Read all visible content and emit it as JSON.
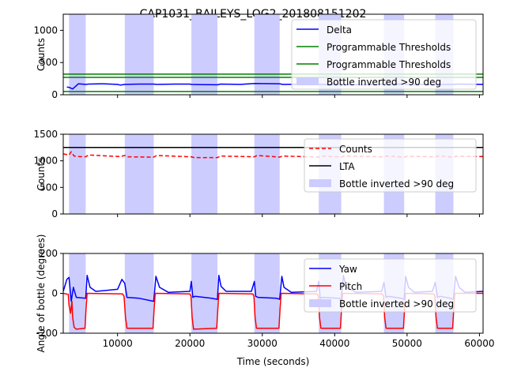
{
  "title": "CAP1031_BAILEYS_LOG2_201808151202",
  "colors": {
    "blue": "#0000ff",
    "green": "#008000",
    "red": "#ff0000",
    "black": "#000000",
    "span": "#ccccff"
  },
  "chart_data": [
    {
      "type": "line",
      "ylabel": "Counts",
      "xlim": [
        2500,
        60500
      ],
      "ylim": [
        0,
        1250
      ],
      "yticks": [
        0,
        500,
        1000
      ],
      "inverted_spans": [
        [
          3300,
          5600
        ],
        [
          11000,
          15000
        ],
        [
          20200,
          23800
        ],
        [
          28900,
          32400
        ],
        [
          37800,
          40900
        ],
        [
          46800,
          49600
        ],
        [
          53900,
          56400
        ]
      ],
      "legend": [
        "Delta",
        "Programmable Thresholds",
        "Programmable Thresholds",
        "Bottle inverted >90 deg"
      ],
      "legend_loc": "top-right",
      "series": [
        {
          "name": "Delta",
          "color": "blue",
          "x": [
            3000,
            3300,
            3800,
            4300,
            4600,
            5600,
            6000,
            8000,
            10000,
            10400,
            11000,
            13000,
            15000,
            15400,
            18000,
            20000,
            20200,
            23800,
            24200,
            27000,
            28900,
            32400,
            32800,
            36000,
            37800,
            40900,
            41300,
            44000,
            46800,
            49600,
            50000,
            53900,
            56400,
            56800,
            60500
          ],
          "y": [
            120,
            115,
            90,
            140,
            170,
            160,
            165,
            170,
            160,
            150,
            160,
            165,
            165,
            160,
            165,
            165,
            160,
            155,
            165,
            160,
            175,
            170,
            160,
            165,
            160,
            160,
            160,
            155,
            165,
            165,
            160,
            160,
            160,
            165,
            160
          ]
        },
        {
          "name": "Programmable Thresholds",
          "color": "green",
          "x": [
            2500,
            60500
          ],
          "y": [
            320,
            320
          ]
        },
        {
          "name": "Programmable Thresholds",
          "color": "green",
          "x": [
            2500,
            60500
          ],
          "y": [
            270,
            270
          ]
        },
        {
          "name": "",
          "color": "green",
          "x": [
            2500,
            60500
          ],
          "y": [
            50,
            50
          ]
        }
      ]
    },
    {
      "type": "line",
      "ylabel": "Counts",
      "xlim": [
        2500,
        60500
      ],
      "ylim": [
        0,
        1500
      ],
      "yticks": [
        0,
        500,
        1000,
        1500
      ],
      "inverted_spans": [
        [
          3300,
          5600
        ],
        [
          11000,
          15000
        ],
        [
          20200,
          23800
        ],
        [
          28900,
          32400
        ],
        [
          37800,
          40900
        ],
        [
          46800,
          49600
        ],
        [
          53900,
          56400
        ]
      ],
      "legend": [
        "Counts",
        "LTA",
        "Bottle inverted >90 deg"
      ],
      "legend_loc": "top-right",
      "series": [
        {
          "name": "Counts",
          "color": "red",
          "dashed": true,
          "x": [
            2500,
            3300,
            3600,
            4000,
            4600,
            5600,
            6000,
            10400,
            11000,
            11400,
            15000,
            15400,
            20200,
            20600,
            23800,
            24200,
            28900,
            29300,
            32400,
            32800,
            37800,
            38200,
            40900,
            41300,
            46800,
            47200,
            49600,
            50000,
            53900,
            54300,
            56400,
            56800,
            60500
          ],
          "y": [
            1130,
            1110,
            1170,
            1090,
            1080,
            1075,
            1110,
            1080,
            1100,
            1075,
            1070,
            1100,
            1075,
            1060,
            1060,
            1090,
            1075,
            1100,
            1070,
            1090,
            1070,
            1090,
            1070,
            1090,
            1075,
            1090,
            1070,
            1085,
            1075,
            1090,
            1070,
            1085,
            1080
          ]
        },
        {
          "name": "LTA",
          "color": "black",
          "x": [
            2500,
            60500
          ],
          "y": [
            1250,
            1250
          ]
        }
      ]
    },
    {
      "type": "line",
      "ylabel": "Angle of bottle (degrees)",
      "xlabel": "Time (seconds)",
      "xlim": [
        2500,
        60500
      ],
      "ylim": [
        -200,
        200
      ],
      "yticks": [
        -200,
        0,
        200
      ],
      "xticks": [
        10000,
        20000,
        30000,
        40000,
        50000,
        60000
      ],
      "inverted_spans": [
        [
          3300,
          5600
        ],
        [
          11000,
          15000
        ],
        [
          20200,
          23800
        ],
        [
          28900,
          32400
        ],
        [
          37800,
          40900
        ],
        [
          46800,
          49600
        ],
        [
          53900,
          56400
        ]
      ],
      "legend": [
        "Yaw",
        "Pitch",
        "Bottle inverted >90 deg"
      ],
      "legend_loc": "top-right",
      "series": [
        {
          "name": "Yaw",
          "color": "blue",
          "x": [
            2500,
            3000,
            3300,
            3600,
            3900,
            4300,
            5600,
            5800,
            6200,
            7000,
            10000,
            10600,
            11000,
            11300,
            13000,
            15000,
            15300,
            15800,
            17000,
            20000,
            20200,
            20400,
            20700,
            23000,
            23800,
            24000,
            24300,
            25000,
            28500,
            28900,
            29100,
            29400,
            32000,
            32400,
            32700,
            33000,
            34000,
            37500,
            37800,
            38000,
            38400,
            40500,
            40900,
            41200,
            41600,
            43000,
            46500,
            46800,
            47100,
            47400,
            49200,
            49600,
            49800,
            50200,
            51000,
            53500,
            53900,
            54200,
            54600,
            56000,
            56400,
            56700,
            57200,
            58000,
            60500
          ],
          "y": [
            10,
            70,
            80,
            -40,
            30,
            -20,
            -25,
            90,
            30,
            10,
            20,
            70,
            50,
            -20,
            -25,
            -40,
            85,
            30,
            5,
            10,
            60,
            -20,
            -15,
            -25,
            -30,
            90,
            35,
            10,
            10,
            60,
            -15,
            -20,
            -25,
            -30,
            85,
            30,
            5,
            10,
            60,
            -25,
            -20,
            -25,
            -30,
            90,
            30,
            5,
            10,
            55,
            -20,
            -15,
            -25,
            -30,
            85,
            30,
            5,
            10,
            55,
            -20,
            -15,
            -25,
            -30,
            85,
            30,
            5,
            10
          ]
        },
        {
          "name": "Pitch",
          "color": "red",
          "x": [
            2500,
            3200,
            3300,
            3500,
            3700,
            3800,
            4000,
            4300,
            5500,
            5650,
            5800,
            10700,
            10900,
            11100,
            11300,
            14900,
            15050,
            15200,
            20000,
            20150,
            20300,
            20500,
            23700,
            23850,
            24000,
            28700,
            28850,
            29000,
            29200,
            32300,
            32450,
            32600,
            37600,
            37750,
            37900,
            38100,
            40800,
            40950,
            41100,
            46600,
            46750,
            46900,
            47100,
            49500,
            49650,
            49800,
            53700,
            53850,
            54000,
            54200,
            56300,
            56450,
            56600,
            60500
          ],
          "y": [
            0,
            -5,
            -60,
            -100,
            -40,
            -120,
            -170,
            -180,
            -175,
            -80,
            0,
            -3,
            -15,
            -120,
            -175,
            -175,
            -80,
            0,
            -3,
            -15,
            -120,
            -180,
            -175,
            -80,
            0,
            -3,
            -15,
            -120,
            -175,
            -175,
            -80,
            0,
            -3,
            -15,
            -120,
            -175,
            -175,
            -80,
            0,
            -3,
            -15,
            -120,
            -175,
            -175,
            -80,
            0,
            -3,
            -15,
            -120,
            -175,
            -175,
            -80,
            0,
            0
          ]
        }
      ]
    }
  ]
}
